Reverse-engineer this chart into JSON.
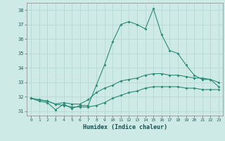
{
  "title": "",
  "xlabel": "Humidex (Indice chaleur)",
  "ylabel": "",
  "xlim": [
    -0.5,
    23.5
  ],
  "ylim": [
    30.7,
    38.5
  ],
  "yticks": [
    31,
    32,
    33,
    34,
    35,
    36,
    37,
    38
  ],
  "xticks": [
    0,
    1,
    2,
    3,
    4,
    5,
    6,
    7,
    8,
    9,
    10,
    11,
    12,
    13,
    14,
    15,
    16,
    17,
    18,
    19,
    20,
    21,
    22,
    23
  ],
  "bg_color": "#ceeae6",
  "grid_color": "#b0d4d0",
  "line_color": "#2e8b78",
  "line1_x": [
    0,
    1,
    2,
    3,
    4,
    5,
    6,
    7,
    8,
    9,
    10,
    11,
    12,
    13,
    14,
    15,
    16,
    17,
    18,
    19,
    20,
    21,
    22,
    23
  ],
  "line1_y": [
    31.9,
    31.7,
    31.6,
    31.1,
    31.5,
    31.2,
    31.4,
    31.4,
    32.8,
    34.2,
    35.8,
    37.0,
    37.2,
    37.0,
    36.7,
    38.1,
    36.3,
    35.2,
    35.0,
    34.2,
    33.5,
    33.2,
    33.2,
    32.7
  ],
  "line2_x": [
    0,
    1,
    2,
    3,
    4,
    5,
    6,
    7,
    8,
    9,
    10,
    11,
    12,
    13,
    14,
    15,
    16,
    17,
    18,
    19,
    20,
    21,
    22,
    23
  ],
  "line2_y": [
    31.9,
    31.8,
    31.7,
    31.5,
    31.6,
    31.5,
    31.5,
    31.8,
    32.3,
    32.6,
    32.8,
    33.1,
    33.2,
    33.3,
    33.5,
    33.6,
    33.6,
    33.5,
    33.5,
    33.4,
    33.3,
    33.3,
    33.2,
    33.0
  ],
  "line3_x": [
    0,
    1,
    2,
    3,
    4,
    5,
    6,
    7,
    8,
    9,
    10,
    11,
    12,
    13,
    14,
    15,
    16,
    17,
    18,
    19,
    20,
    21,
    22,
    23
  ],
  "line3_y": [
    31.9,
    31.8,
    31.7,
    31.5,
    31.4,
    31.3,
    31.3,
    31.3,
    31.4,
    31.6,
    31.9,
    32.1,
    32.3,
    32.4,
    32.6,
    32.7,
    32.7,
    32.7,
    32.7,
    32.6,
    32.6,
    32.5,
    32.5,
    32.5
  ]
}
